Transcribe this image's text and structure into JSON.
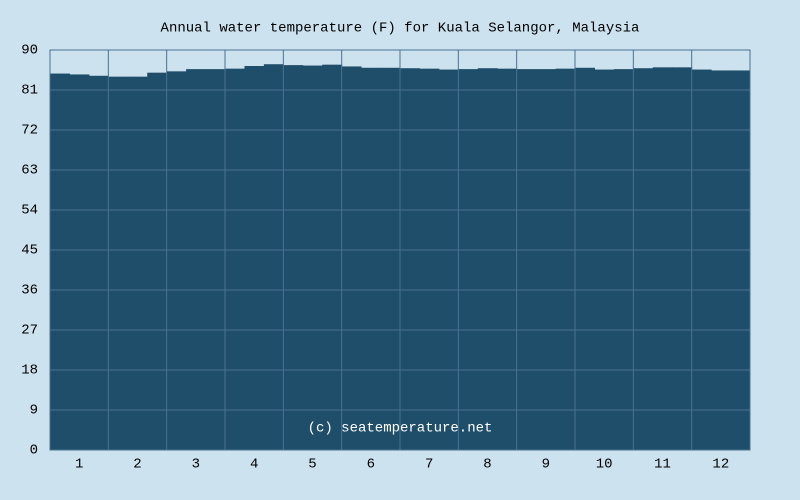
{
  "chart_data": {
    "type": "area",
    "title": "Annual water temperature (F) for Kuala Selangor, Malaysia",
    "watermark": "(c) seatemperature.net",
    "categories": [
      null,
      "1",
      null,
      null,
      "2",
      null,
      null,
      "3",
      null,
      null,
      "4",
      null,
      null,
      "5",
      null,
      null,
      "6",
      null,
      null,
      "7",
      null,
      null,
      "8",
      null,
      null,
      "9",
      null,
      null,
      "10",
      null,
      null,
      "11",
      null,
      null,
      "12",
      null
    ],
    "values": [
      84.7,
      84.5,
      84.2,
      84.0,
      84.0,
      84.9,
      85.2,
      85.7,
      85.7,
      85.8,
      86.4,
      86.8,
      86.6,
      86.5,
      86.7,
      86.3,
      86.0,
      86.0,
      85.9,
      85.8,
      85.6,
      85.7,
      85.9,
      85.8,
      85.7,
      85.7,
      85.8,
      86.0,
      85.6,
      85.7,
      85.9,
      86.1,
      86.1,
      85.6,
      85.4,
      85.4
    ],
    "color": "#1f4e6a",
    "ylim": [
      0,
      90
    ],
    "yticks": [
      0,
      9,
      18,
      27,
      36,
      45,
      54,
      63,
      72,
      81,
      90
    ],
    "grid": true
  }
}
